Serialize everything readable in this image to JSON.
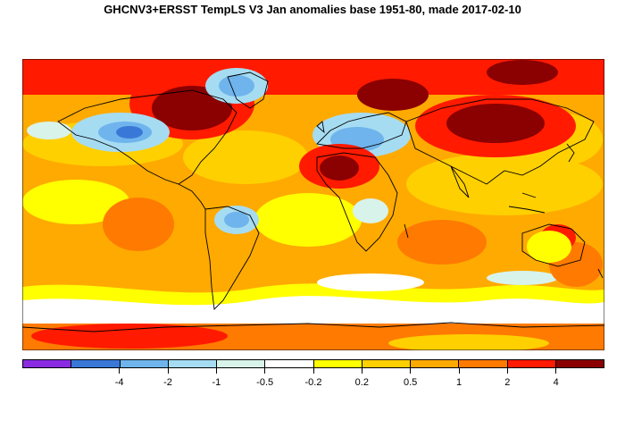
{
  "title": "GHCNV3+ERSST TempLS V3 Jan anomalies base 1951-80, made 2017-02-10",
  "legend": {
    "colors": [
      "#8a2be2",
      "#3a78d8",
      "#6fb4ec",
      "#a6dcf2",
      "#d8f3ea",
      "#ffffff",
      "#ffff00",
      "#ffd000",
      "#ffaa00",
      "#ff7a00",
      "#ff1a00",
      "#8b0000"
    ],
    "labels": [
      "-4",
      "-2",
      "-1",
      "-0.5",
      "-0.2",
      "0.2",
      "0.5",
      "1",
      "2",
      "4"
    ]
  }
}
